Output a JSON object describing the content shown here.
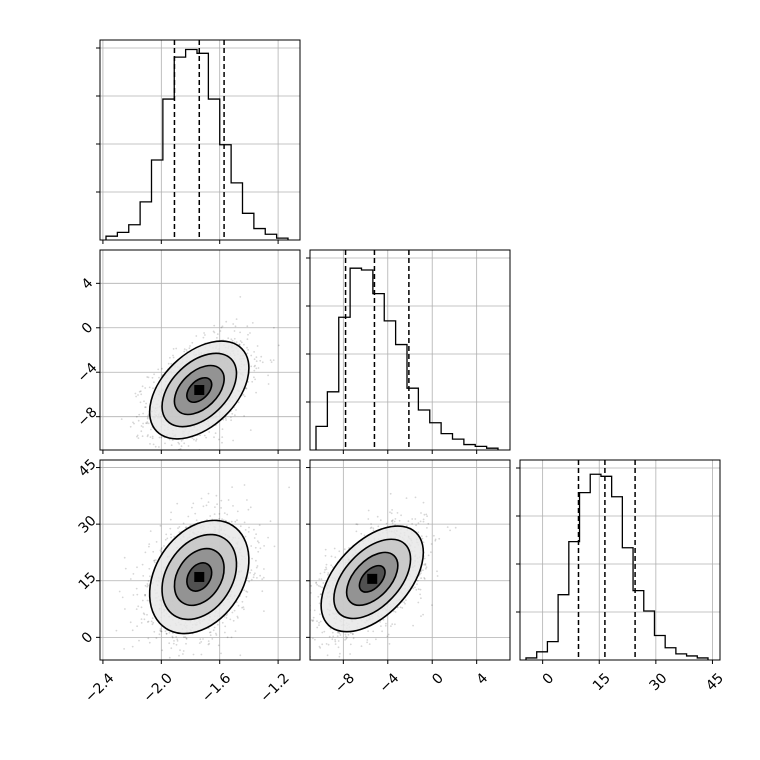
{
  "chart_data": {
    "type": "corner",
    "title": "",
    "grid": true,
    "parameters": [
      {
        "name": "",
        "range": [
          -2.42,
          -1.05
        ],
        "ticks": [
          -2.4,
          -2.0,
          -1.6,
          -1.2
        ],
        "tick_labels": [
          "−2.4",
          "−2.0",
          "−1.6",
          "−1.2"
        ],
        "quantiles": [
          -1.91,
          -1.74,
          -1.57
        ],
        "hist_values": [
          0.02,
          0.04,
          0.08,
          0.2,
          0.42,
          0.74,
          0.96,
          1.0,
          0.98,
          0.74,
          0.5,
          0.3,
          0.14,
          0.06,
          0.03,
          0.01
        ],
        "hist_ylim": [
          0,
          1.05
        ]
      },
      {
        "name": "",
        "range": [
          -11.0,
          7.0
        ],
        "ticks": [
          -8,
          -4,
          0,
          4
        ],
        "tick_labels": [
          "−8",
          "−4",
          "0",
          "4"
        ],
        "quantiles": [
          -7.8,
          -5.2,
          -2.1
        ],
        "hist_values": [
          0.13,
          0.32,
          0.73,
          1.0,
          0.99,
          0.86,
          0.71,
          0.58,
          0.34,
          0.22,
          0.15,
          0.09,
          0.06,
          0.03,
          0.02,
          0.01
        ],
        "hist_ylim": [
          0,
          1.1
        ]
      },
      {
        "name": "",
        "range": [
          -6,
          47
        ],
        "ticks": [
          0,
          15,
          30,
          45
        ],
        "tick_labels": [
          "0",
          "15",
          "30",
          "45"
        ],
        "quantiles": [
          9.5,
          16.5,
          24.5
        ],
        "hist_values": [
          0.01,
          0.04,
          0.09,
          0.32,
          0.58,
          0.82,
          0.91,
          0.9,
          0.8,
          0.55,
          0.34,
          0.24,
          0.12,
          0.06,
          0.03,
          0.02,
          0.01
        ],
        "hist_ylim": [
          0,
          0.98
        ]
      }
    ],
    "pairs": [
      {
        "x": 0,
        "y": 1,
        "mean": [
          -1.74,
          -5.6
        ],
        "sd": [
          0.17,
          2.2
        ],
        "rho": 0.45
      },
      {
        "x": 0,
        "y": 2,
        "mean": [
          -1.74,
          16.0
        ],
        "sd": [
          0.17,
          7.5
        ],
        "rho": 0.3
      },
      {
        "x": 1,
        "y": 2,
        "mean": [
          -5.4,
          15.5
        ],
        "sd": [
          2.3,
          7.0
        ],
        "rho": 0.5
      }
    ],
    "contour_levels": [
      0.5,
      1.0,
      1.5,
      2.0
    ]
  }
}
